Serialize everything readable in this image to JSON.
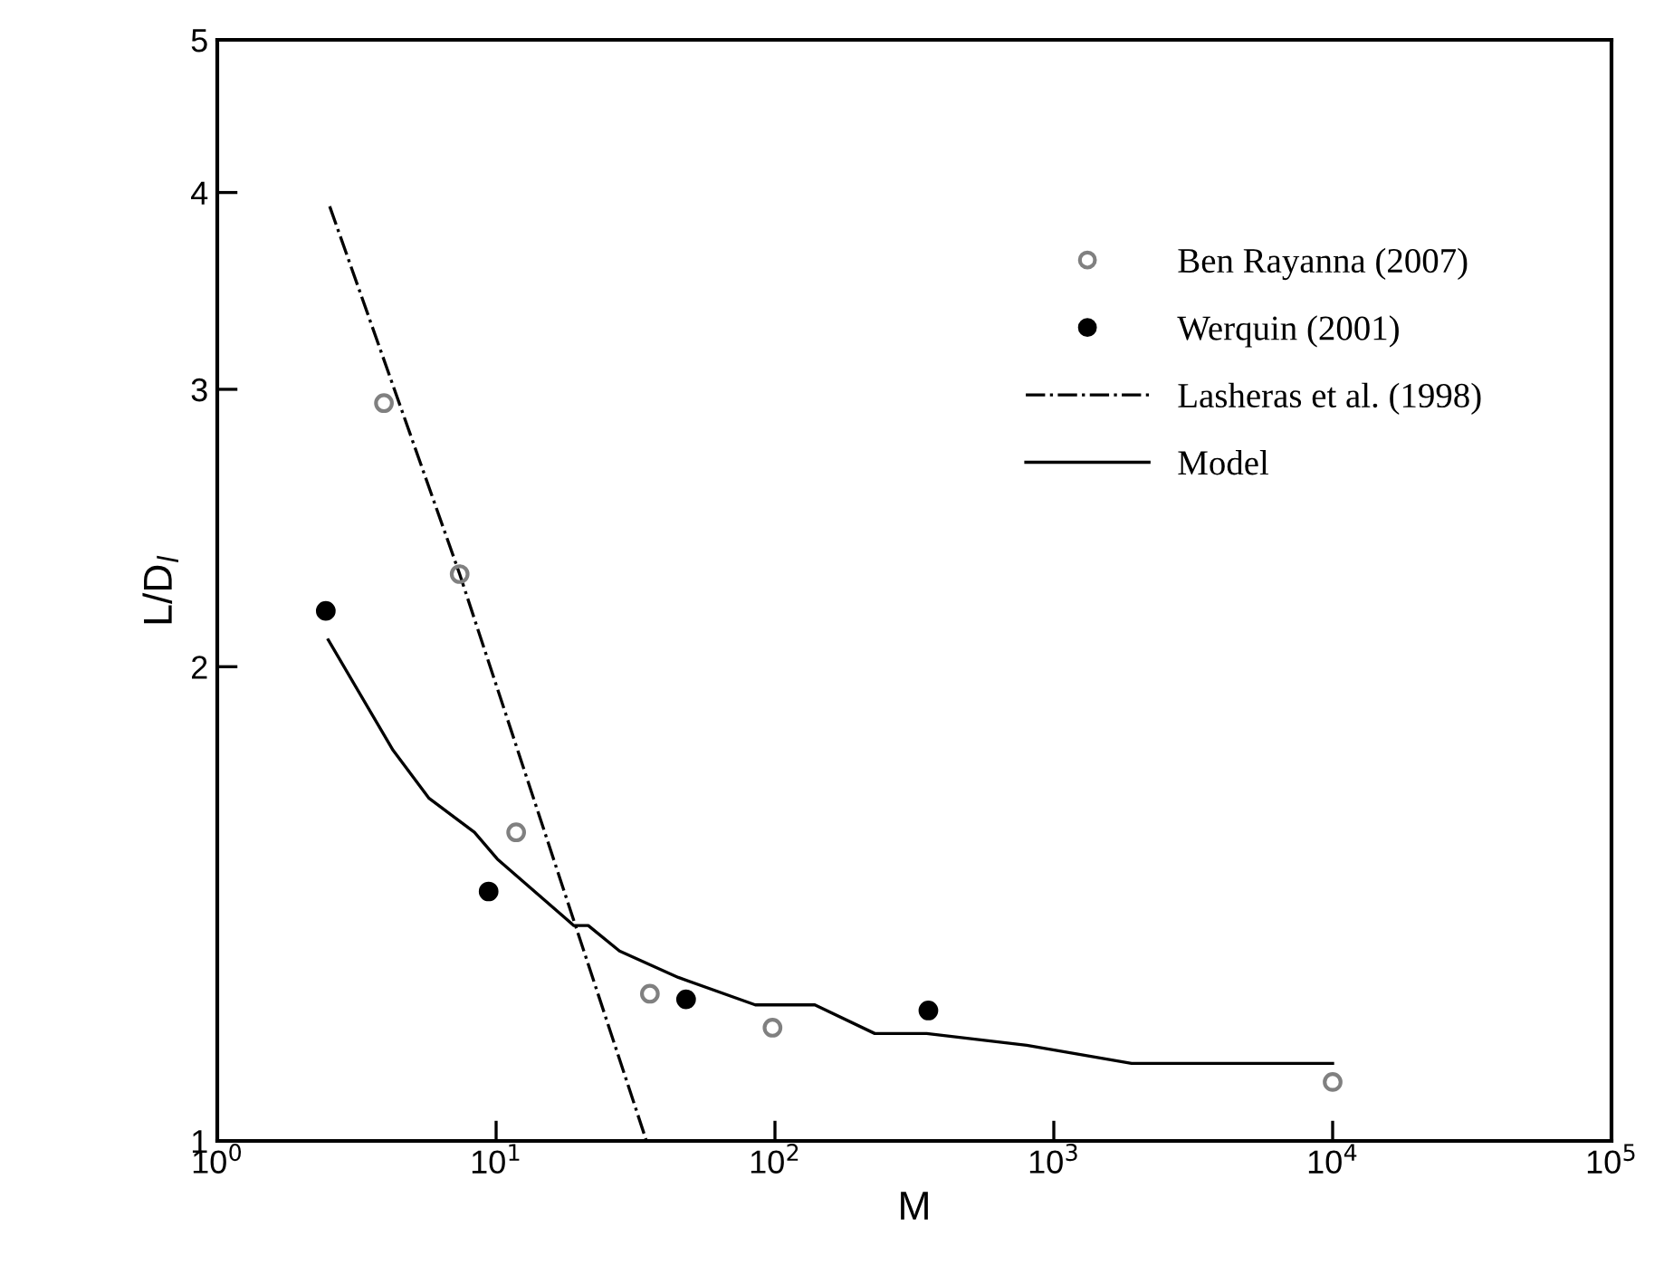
{
  "chart_data": {
    "type": "scatter",
    "xlabel": "M",
    "ylabel": "L/D$_{l}$",
    "log": "xy",
    "xlim": [
      1,
      100000
    ],
    "ylim": [
      1,
      5
    ],
    "xticks": [
      {
        "value": 1,
        "label": "10$^{0}$"
      },
      {
        "value": 10,
        "label": "10$^{1}$"
      },
      {
        "value": 100,
        "label": "10$^{2}$"
      },
      {
        "value": 1000,
        "label": "10$^{3}$"
      },
      {
        "value": 10000,
        "label": "10$^{4}$"
      },
      {
        "value": 100000,
        "label": "10$^{5}$"
      }
    ],
    "yticks": [
      1,
      2,
      3,
      4,
      5
    ],
    "grid": false,
    "legend": "top right",
    "series": [
      {
        "name": "Ben Rayanna (2007)",
        "marker": "circle",
        "color": "#808080",
        "x": [
          3.96,
          7.4,
          11.8,
          35.6,
          98,
          10000
        ],
        "values": [
          2.94,
          2.29,
          1.57,
          1.24,
          1.18,
          1.09
        ]
      },
      {
        "name": "Werquin (2001)",
        "marker": "circle",
        "color": "#000000",
        "x": [
          2.45,
          9.4,
          48,
          355
        ],
        "values": [
          2.17,
          1.44,
          1.23,
          1.21
        ]
      },
      {
        "name": "Lasheras et al. (1998)",
        "type": "line",
        "line_style": "dashdot",
        "color": "#000000",
        "x": [
          2.53,
          7.4,
          34.6
        ],
        "values": [
          3.92,
          2.29,
          1.0
        ]
      },
      {
        "name": "Model",
        "type": "line",
        "line_style": "solid",
        "color": "#000000",
        "x": [
          2.5,
          4.27,
          5.75,
          8.36,
          10.1,
          19,
          21.4,
          27.7,
          45,
          85,
          139,
          228,
          350,
          800,
          1900,
          10000
        ],
        "values": [
          2.08,
          1.77,
          1.65,
          1.57,
          1.51,
          1.37,
          1.37,
          1.32,
          1.27,
          1.22,
          1.22,
          1.17,
          1.17,
          1.15,
          1.12,
          1.12
        ]
      }
    ]
  }
}
